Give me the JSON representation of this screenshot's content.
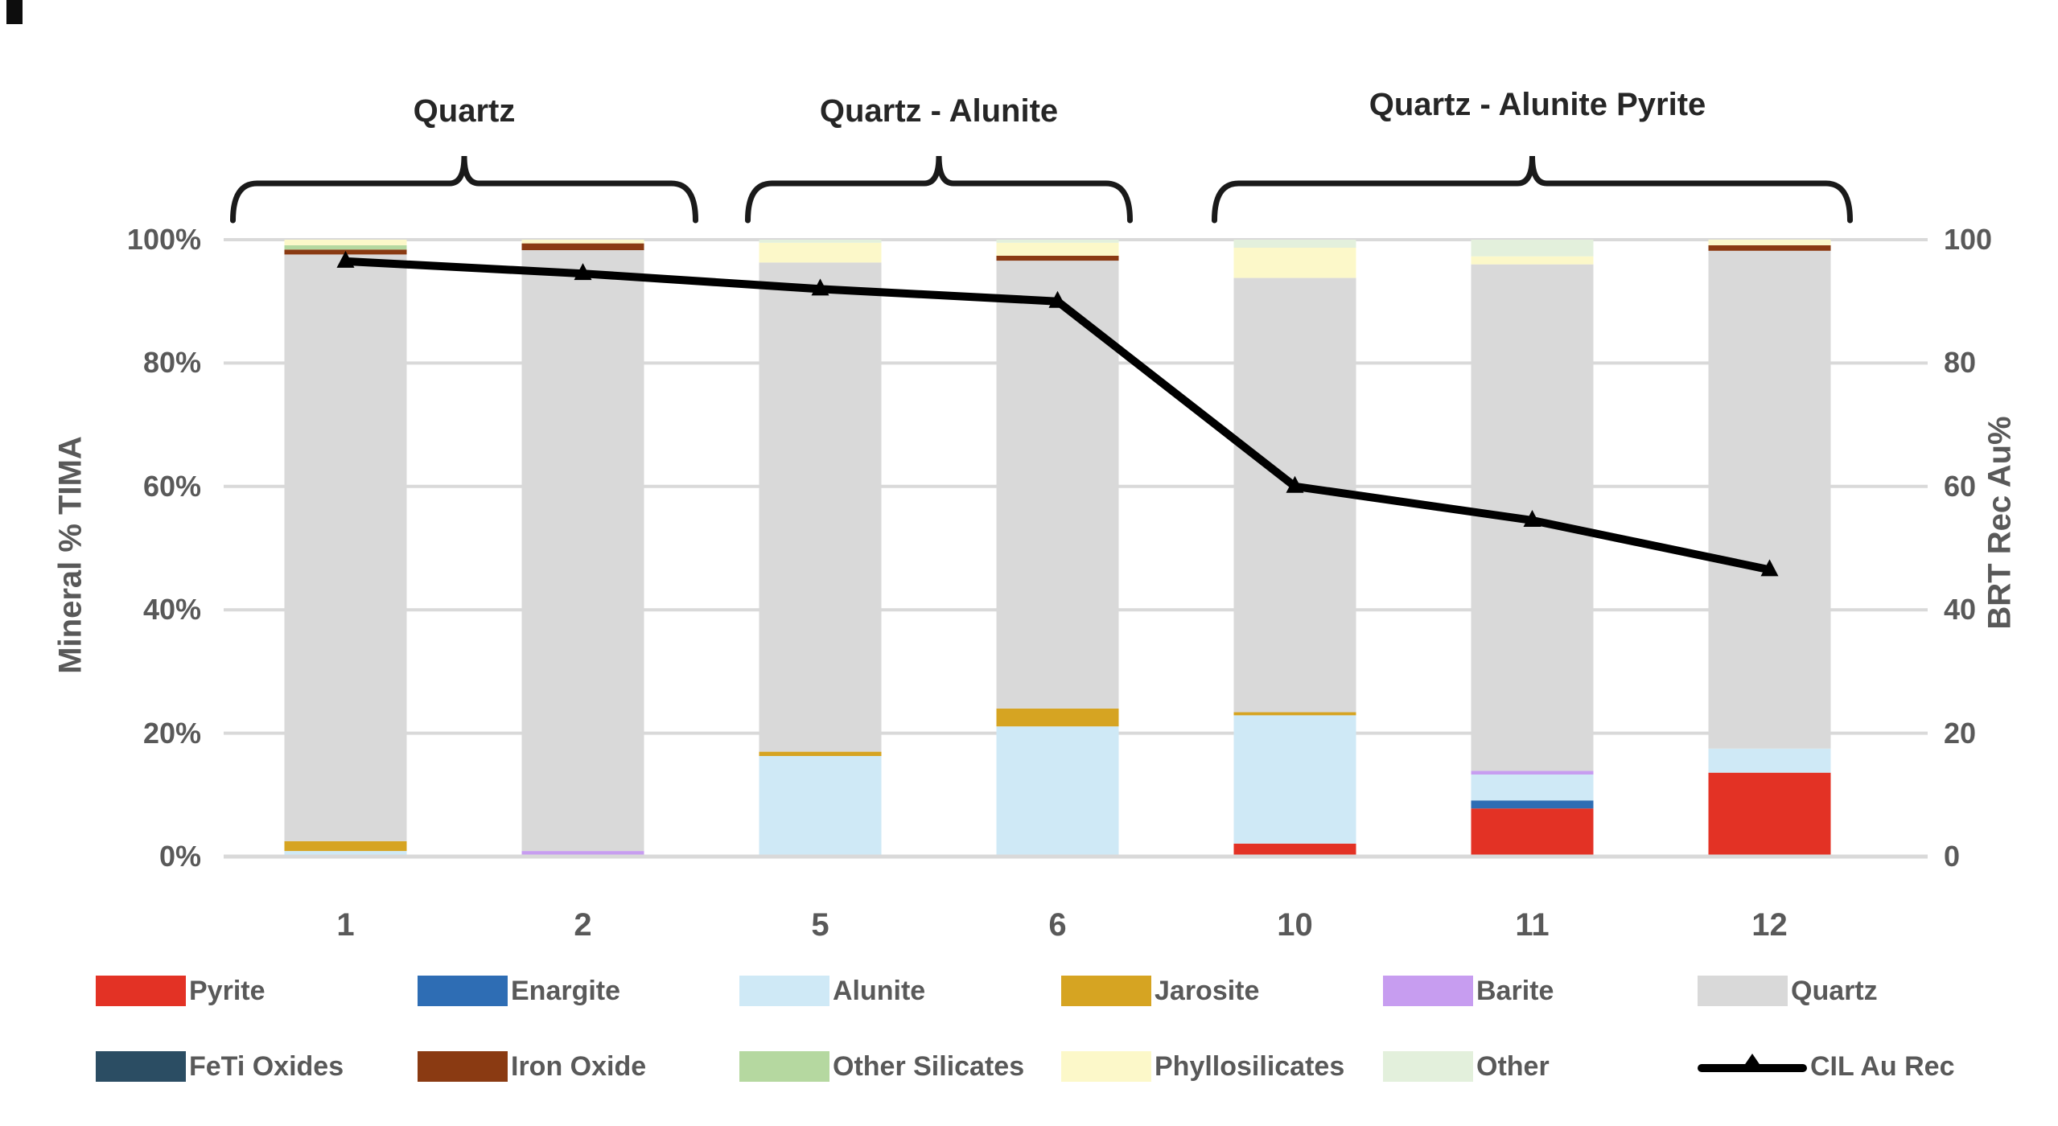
{
  "chart_data": {
    "type": "bar",
    "subtype": "stacked-percent-with-line-overlay",
    "categories": [
      "1",
      "2",
      "5",
      "6",
      "10",
      "11",
      "12"
    ],
    "series": [
      {
        "name": "Pyrite",
        "color": "#e33225",
        "values": [
          0.3,
          0.2,
          0.3,
          0.3,
          2.1,
          7.8,
          13.6
        ]
      },
      {
        "name": "Enargite",
        "color": "#2e6db4",
        "values": [
          0,
          0,
          0,
          0,
          0,
          1.3,
          0
        ]
      },
      {
        "name": "Alunite",
        "color": "#cfe9f6",
        "values": [
          0.6,
          0,
          16.0,
          20.8,
          20.8,
          4.2,
          3.9
        ]
      },
      {
        "name": "Jarosite",
        "color": "#d6a422",
        "values": [
          1.6,
          0,
          0.7,
          2.9,
          0.5,
          0,
          0
        ]
      },
      {
        "name": "Barite",
        "color": "#c79df0",
        "values": [
          0,
          0.7,
          0,
          0,
          0,
          0.6,
          0
        ]
      },
      {
        "name": "Quartz",
        "color": "#d9d9d9",
        "values": [
          95.1,
          97.4,
          79.3,
          72.6,
          70.4,
          82.1,
          80.7
        ]
      },
      {
        "name": "FeTi Oxides",
        "color": "#2b4d63",
        "values": [
          0,
          0,
          0,
          0,
          0,
          0,
          0
        ]
      },
      {
        "name": "Iron Oxide",
        "color": "#8a3a12",
        "values": [
          0.8,
          1.1,
          0,
          0.8,
          0,
          0,
          0.9
        ]
      },
      {
        "name": "Other Silicates",
        "color": "#b5d8a0",
        "values": [
          0.7,
          0,
          0,
          0,
          0,
          0,
          0
        ]
      },
      {
        "name": "Phyllosilicates",
        "color": "#fcf8c9",
        "values": [
          0.9,
          0.6,
          3.2,
          2.1,
          4.9,
          1.3,
          0.9
        ]
      },
      {
        "name": "Other",
        "color": "#e3f0dc",
        "values": [
          0,
          0,
          0.5,
          0.5,
          1.3,
          2.7,
          0
        ]
      }
    ],
    "line_series": {
      "name": "CIL Au Rec",
      "color": "#000000",
      "values": [
        96.5,
        94.5,
        92,
        90,
        60,
        54.5,
        46.5
      ]
    },
    "ylabel_left": "Mineral % TIMA",
    "ylabel_right": "BRT Rec Au%",
    "y_ticks_left": [
      "0%",
      "20%",
      "40%",
      "60%",
      "80%",
      "100%"
    ],
    "y_ticks_right": [
      "0",
      "20",
      "40",
      "60",
      "80",
      "100"
    ],
    "ylim": [
      0,
      100
    ],
    "grid": true,
    "grid_color": "#d9d9d9",
    "axis_text_color": "#595959",
    "group_brackets": [
      {
        "label": "Quartz",
        "from": 0,
        "to": 1
      },
      {
        "label": "Quartz - Alunite",
        "from": 2,
        "to": 3
      },
      {
        "label": "Quartz - Alunite Pyrite",
        "from": 4,
        "to": 6
      }
    ],
    "legend_position": "bottom"
  },
  "legend": {
    "rows": [
      [
        {
          "label": "Pyrite",
          "color": "#e33225",
          "type": "swatch"
        },
        {
          "label": "Enargite",
          "color": "#2e6db4",
          "type": "swatch"
        },
        {
          "label": "Alunite",
          "color": "#cfe9f6",
          "type": "swatch"
        },
        {
          "label": "Jarosite",
          "color": "#d6a422",
          "type": "swatch"
        },
        {
          "label": "Barite",
          "color": "#c79df0",
          "type": "swatch"
        },
        {
          "label": "Quartz",
          "color": "#d9d9d9",
          "type": "swatch"
        }
      ],
      [
        {
          "label": "FeTi Oxides",
          "color": "#2b4d63",
          "type": "swatch"
        },
        {
          "label": "Iron Oxide",
          "color": "#8a3a12",
          "type": "swatch"
        },
        {
          "label": "Other Silicates",
          "color": "#b5d8a0",
          "type": "swatch"
        },
        {
          "label": "Phyllosilicates",
          "color": "#fcf8c9",
          "type": "swatch"
        },
        {
          "label": "Other",
          "color": "#e3f0dc",
          "type": "swatch"
        },
        {
          "label": "CIL Au Rec",
          "color": "#000000",
          "type": "line-marker"
        }
      ]
    ]
  }
}
